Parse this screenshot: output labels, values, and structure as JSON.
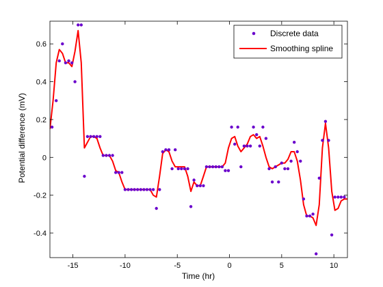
{
  "chart_data": {
    "type": "line",
    "title": "",
    "xlabel": "Time (hr)",
    "ylabel": "Potential difference (mV)",
    "xlim": [
      -17.2,
      11.3
    ],
    "ylim": [
      -0.53,
      0.72
    ],
    "xticks": [
      -15,
      -10,
      -5,
      0,
      5,
      10
    ],
    "xtick_labels": [
      "-15",
      "-10",
      "-5",
      "0",
      "5",
      "10"
    ],
    "yticks": [
      -0.4,
      -0.2,
      0,
      0.2,
      0.4,
      0.6
    ],
    "ytick_labels": [
      "-0.4",
      "-0.2",
      "0",
      "0.2",
      "0.4",
      "0.6"
    ],
    "grid": false,
    "legend_position": "top-right",
    "series": [
      {
        "name": "Discrete data",
        "kind": "scatter",
        "color": "#6a00cc",
        "x": [
          -17.0,
          -16.6,
          -16.3,
          -16.0,
          -15.7,
          -15.4,
          -15.1,
          -14.8,
          -14.5,
          -14.2,
          -13.9,
          -13.6,
          -13.3,
          -13.0,
          -12.7,
          -12.4,
          -12.1,
          -11.8,
          -11.5,
          -11.2,
          -10.9,
          -10.6,
          -10.3,
          -10.0,
          -9.7,
          -9.4,
          -9.1,
          -8.8,
          -8.5,
          -8.2,
          -7.9,
          -7.6,
          -7.3,
          -7.0,
          -6.7,
          -6.4,
          -6.1,
          -5.8,
          -5.5,
          -5.2,
          -4.9,
          -4.6,
          -4.3,
          -4.0,
          -3.7,
          -3.4,
          -3.1,
          -2.8,
          -2.5,
          -2.2,
          -1.9,
          -1.6,
          -1.3,
          -1.0,
          -0.7,
          -0.4,
          -0.1,
          0.2,
          0.5,
          0.8,
          1.1,
          1.4,
          1.7,
          2.0,
          2.3,
          2.6,
          2.9,
          3.2,
          3.5,
          3.8,
          4.1,
          4.4,
          4.7,
          5.0,
          5.3,
          5.6,
          5.9,
          6.2,
          6.5,
          6.8,
          7.1,
          7.4,
          7.7,
          8.0,
          8.3,
          8.6,
          8.9,
          9.2,
          9.5,
          9.8,
          10.1,
          10.4,
          10.7,
          11.0
        ],
        "y": [
          0.16,
          0.3,
          0.51,
          0.6,
          0.5,
          0.51,
          0.5,
          0.4,
          0.7,
          0.7,
          -0.1,
          0.11,
          0.11,
          0.11,
          0.11,
          0.11,
          0.01,
          0.01,
          0.01,
          0.01,
          -0.08,
          -0.08,
          -0.08,
          -0.17,
          -0.17,
          -0.17,
          -0.17,
          -0.17,
          -0.17,
          -0.17,
          -0.17,
          -0.17,
          -0.17,
          -0.27,
          -0.17,
          0.03,
          0.04,
          0.04,
          -0.06,
          0.04,
          -0.06,
          -0.06,
          -0.06,
          -0.06,
          -0.26,
          -0.12,
          -0.15,
          -0.15,
          -0.15,
          -0.05,
          -0.05,
          -0.05,
          -0.05,
          -0.05,
          -0.05,
          -0.07,
          -0.07,
          0.16,
          0.07,
          0.16,
          -0.05,
          0.06,
          0.06,
          0.06,
          0.16,
          0.12,
          0.06,
          0.16,
          0.1,
          -0.06,
          -0.13,
          -0.05,
          -0.13,
          -0.03,
          -0.06,
          -0.06,
          -0.02,
          0.08,
          0.03,
          -0.02,
          -0.22,
          -0.31,
          -0.31,
          -0.3,
          -0.51,
          -0.11,
          0.09,
          0.19,
          0.09,
          -0.41,
          -0.21,
          -0.21,
          -0.21,
          -0.21
        ]
      },
      {
        "name": "Smoothing spline",
        "kind": "line",
        "color": "#ff0000",
        "x": [
          -17.2,
          -16.9,
          -16.6,
          -16.3,
          -16.0,
          -15.7,
          -15.4,
          -15.1,
          -14.8,
          -14.5,
          -14.2,
          -13.9,
          -13.6,
          -13.3,
          -13.0,
          -12.7,
          -12.4,
          -12.1,
          -11.8,
          -11.5,
          -11.2,
          -10.9,
          -10.6,
          -10.3,
          -10.0,
          -9.7,
          -9.4,
          -9.1,
          -8.8,
          -8.5,
          -8.2,
          -7.9,
          -7.6,
          -7.3,
          -7.0,
          -6.7,
          -6.4,
          -6.1,
          -5.8,
          -5.5,
          -5.2,
          -4.9,
          -4.6,
          -4.3,
          -4.0,
          -3.7,
          -3.4,
          -3.1,
          -2.8,
          -2.5,
          -2.2,
          -1.9,
          -1.6,
          -1.3,
          -1.0,
          -0.7,
          -0.4,
          -0.1,
          0.2,
          0.5,
          0.8,
          1.1,
          1.4,
          1.7,
          2.0,
          2.3,
          2.6,
          2.9,
          3.2,
          3.5,
          3.8,
          4.1,
          4.4,
          4.7,
          5.0,
          5.3,
          5.6,
          5.9,
          6.2,
          6.5,
          6.8,
          7.1,
          7.4,
          7.7,
          8.0,
          8.3,
          8.6,
          8.9,
          9.2,
          9.5,
          9.8,
          10.1,
          10.4,
          10.7,
          11.0,
          11.3
        ],
        "y": [
          0.15,
          0.3,
          0.5,
          0.57,
          0.55,
          0.5,
          0.5,
          0.48,
          0.56,
          0.67,
          0.5,
          0.05,
          0.08,
          0.11,
          0.11,
          0.1,
          0.05,
          0.01,
          0.01,
          0.01,
          -0.02,
          -0.07,
          -0.08,
          -0.13,
          -0.17,
          -0.17,
          -0.17,
          -0.17,
          -0.17,
          -0.17,
          -0.17,
          -0.17,
          -0.17,
          -0.2,
          -0.21,
          -0.1,
          0.02,
          0.04,
          0.03,
          -0.02,
          -0.05,
          -0.05,
          -0.05,
          -0.05,
          -0.1,
          -0.18,
          -0.13,
          -0.15,
          -0.15,
          -0.1,
          -0.05,
          -0.05,
          -0.05,
          -0.05,
          -0.05,
          -0.05,
          -0.03,
          0.05,
          0.1,
          0.11,
          0.06,
          0.03,
          0.05,
          0.07,
          0.11,
          0.12,
          0.1,
          0.11,
          0.06,
          0.0,
          -0.05,
          -0.06,
          -0.05,
          -0.04,
          -0.03,
          -0.03,
          -0.01,
          0.03,
          0.03,
          -0.02,
          -0.12,
          -0.25,
          -0.31,
          -0.31,
          -0.32,
          -0.36,
          -0.25,
          0.05,
          0.18,
          0.05,
          -0.18,
          -0.28,
          -0.27,
          -0.23,
          -0.22,
          -0.22
        ]
      }
    ]
  }
}
